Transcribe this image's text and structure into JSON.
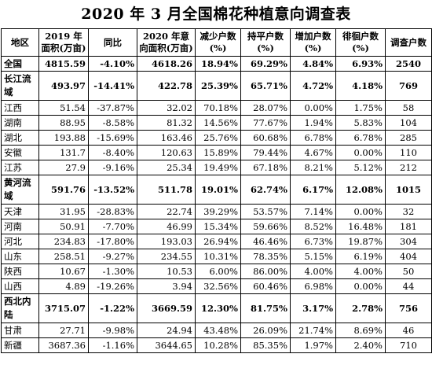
{
  "title": "2020 年 3 月全国棉花种植意向调查表",
  "headers": [
    "地区",
    "2019 年面积(万亩)",
    "同比",
    "2020 年意向面积(万亩)",
    "减少户数(%)",
    "持平户数(%)",
    "增加户数(%)",
    "徘徊户数(%)",
    "调查户数"
  ],
  "rows": [
    {
      "type": "sum",
      "cells": [
        "全国",
        "4815.59",
        "-4.10%",
        "4618.26",
        "18.94%",
        "69.29%",
        "4.84%",
        "6.93%",
        "2540"
      ]
    },
    {
      "type": "sum-tall",
      "cells": [
        "长江流域",
        "493.97",
        "-14.41%",
        "422.78",
        "25.39%",
        "65.71%",
        "4.72%",
        "4.18%",
        "769"
      ]
    },
    {
      "type": "row",
      "cells": [
        "江西",
        "51.54",
        "-37.87%",
        "32.02",
        "70.18%",
        "28.07%",
        "0.00%",
        "1.75%",
        "58"
      ]
    },
    {
      "type": "row",
      "cells": [
        "湖南",
        "88.95",
        "-8.58%",
        "81.32",
        "14.56%",
        "77.67%",
        "1.94%",
        "5.83%",
        "104"
      ]
    },
    {
      "type": "row",
      "cells": [
        "湖北",
        "193.88",
        "-15.69%",
        "163.46",
        "25.76%",
        "60.68%",
        "6.78%",
        "6.78%",
        "285"
      ]
    },
    {
      "type": "row",
      "cells": [
        "安徽",
        "131.7",
        "-8.40%",
        "120.63",
        "15.89%",
        "79.44%",
        "4.67%",
        "0.00%",
        "110"
      ]
    },
    {
      "type": "row",
      "cells": [
        "江苏",
        "27.9",
        "-9.16%",
        "25.34",
        "19.49%",
        "67.18%",
        "8.21%",
        "5.12%",
        "212"
      ]
    },
    {
      "type": "sum-tall",
      "cells": [
        "黄河流域",
        "591.76",
        "-13.52%",
        "511.78",
        "19.01%",
        "62.74%",
        "6.17%",
        "12.08%",
        "1015"
      ]
    },
    {
      "type": "row",
      "cells": [
        "天津",
        "31.95",
        "-28.83%",
        "22.74",
        "39.29%",
        "53.57%",
        "7.14%",
        "0.00%",
        "32"
      ]
    },
    {
      "type": "row",
      "cells": [
        "河南",
        "50.91",
        "-7.70%",
        "46.99",
        "15.34%",
        "59.66%",
        "8.52%",
        "16.48%",
        "181"
      ]
    },
    {
      "type": "row",
      "cells": [
        "河北",
        "234.83",
        "-17.80%",
        "193.03",
        "26.94%",
        "46.46%",
        "6.73%",
        "19.87%",
        "304"
      ]
    },
    {
      "type": "row",
      "cells": [
        "山东",
        "258.51",
        "-9.27%",
        "234.55",
        "10.31%",
        "78.35%",
        "5.15%",
        "6.19%",
        "404"
      ]
    },
    {
      "type": "row",
      "cells": [
        "陕西",
        "10.67",
        "-1.30%",
        "10.53",
        "6.00%",
        "86.00%",
        "4.00%",
        "4.00%",
        "50"
      ]
    },
    {
      "type": "row",
      "cells": [
        "山西",
        "4.89",
        "-19.26%",
        "3.94",
        "32.56%",
        "60.46%",
        "6.98%",
        "0.00%",
        "44"
      ]
    },
    {
      "type": "sum-tall",
      "cells": [
        "西北内陆",
        "3715.07",
        "-1.22%",
        "3669.59",
        "12.30%",
        "81.75%",
        "3.17%",
        "2.78%",
        "756"
      ]
    },
    {
      "type": "row",
      "cells": [
        "甘肃",
        "27.71",
        "-9.98%",
        "24.94",
        "43.48%",
        "26.09%",
        "21.74%",
        "8.69%",
        "46"
      ]
    },
    {
      "type": "row",
      "cells": [
        "新疆",
        "3687.36",
        "-1.16%",
        "3644.65",
        "10.28%",
        "85.35%",
        "1.97%",
        "2.40%",
        "710"
      ]
    }
  ]
}
